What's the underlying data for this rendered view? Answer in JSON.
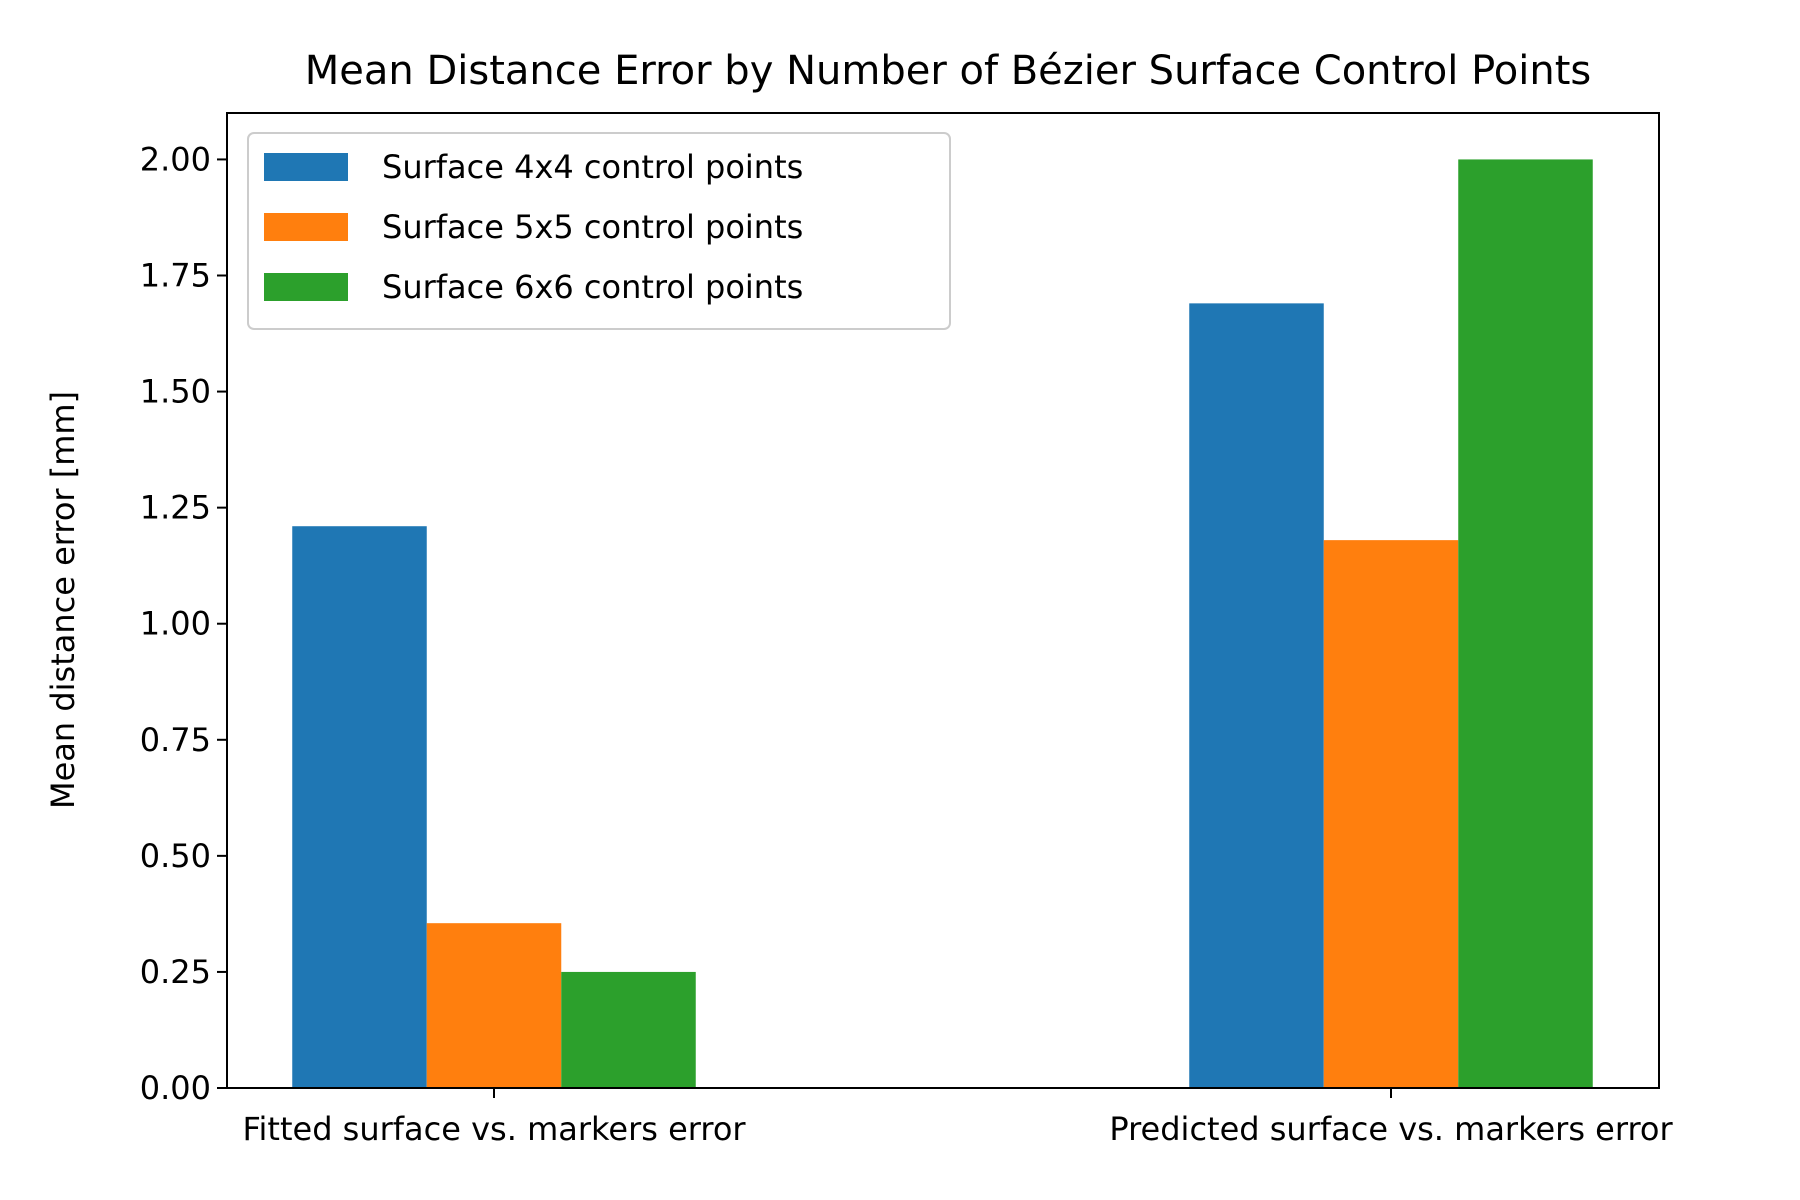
{
  "chart_data": {
    "type": "bar",
    "title": "Mean Distance Error by Number of Bézier Surface Control Points",
    "xlabel": "",
    "ylabel": "Mean distance error [mm]",
    "categories": [
      "Fitted surface vs. markers error",
      "Predicted surface vs. markers error"
    ],
    "series": [
      {
        "name": "Surface 4x4 control points",
        "color": "#1f77b4",
        "values": [
          1.21,
          1.69
        ]
      },
      {
        "name": "Surface 5x5 control points",
        "color": "#ff7f0e",
        "values": [
          0.355,
          1.18
        ]
      },
      {
        "name": "Surface 6x6 control points",
        "color": "#2ca02c",
        "values": [
          0.25,
          2.0
        ]
      }
    ],
    "ylim": [
      0,
      2.1
    ],
    "yticks": [
      "0.00",
      "0.25",
      "0.50",
      "0.75",
      "1.00",
      "1.25",
      "1.50",
      "1.75",
      "2.00"
    ],
    "grid": false,
    "legend_position": "upper-left"
  }
}
